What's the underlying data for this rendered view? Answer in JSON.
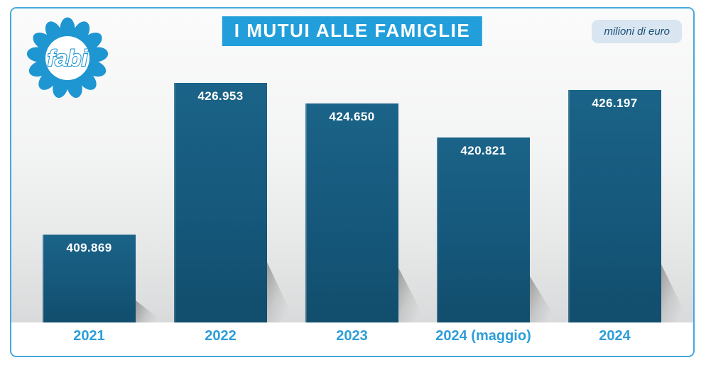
{
  "logo": {
    "text": "fabi"
  },
  "header": {
    "title": "I MUTUI ALLE FAMIGLIE",
    "unit_badge": "milioni di euro"
  },
  "chart_data": {
    "type": "bar",
    "title": "I MUTUI ALLE FAMIGLIE",
    "unit": "milioni di euro",
    "categories": [
      "2021",
      "2022",
      "2023",
      "2024 (maggio)",
      "2024"
    ],
    "values": [
      409869,
      426953,
      424650,
      420821,
      426197
    ],
    "value_labels": [
      "409.869",
      "426.953",
      "424.650",
      "420.821",
      "426.197"
    ],
    "ylim": [
      400000,
      430000
    ],
    "grid": false,
    "legend": false,
    "xlabel": "",
    "ylabel": "",
    "bar_color": "#15587b",
    "value_label_color": "#ffffff",
    "category_label_color": "#2d9ed8",
    "title_bg_color": "#229fdb",
    "frame_border_color": "#45a9dc"
  }
}
